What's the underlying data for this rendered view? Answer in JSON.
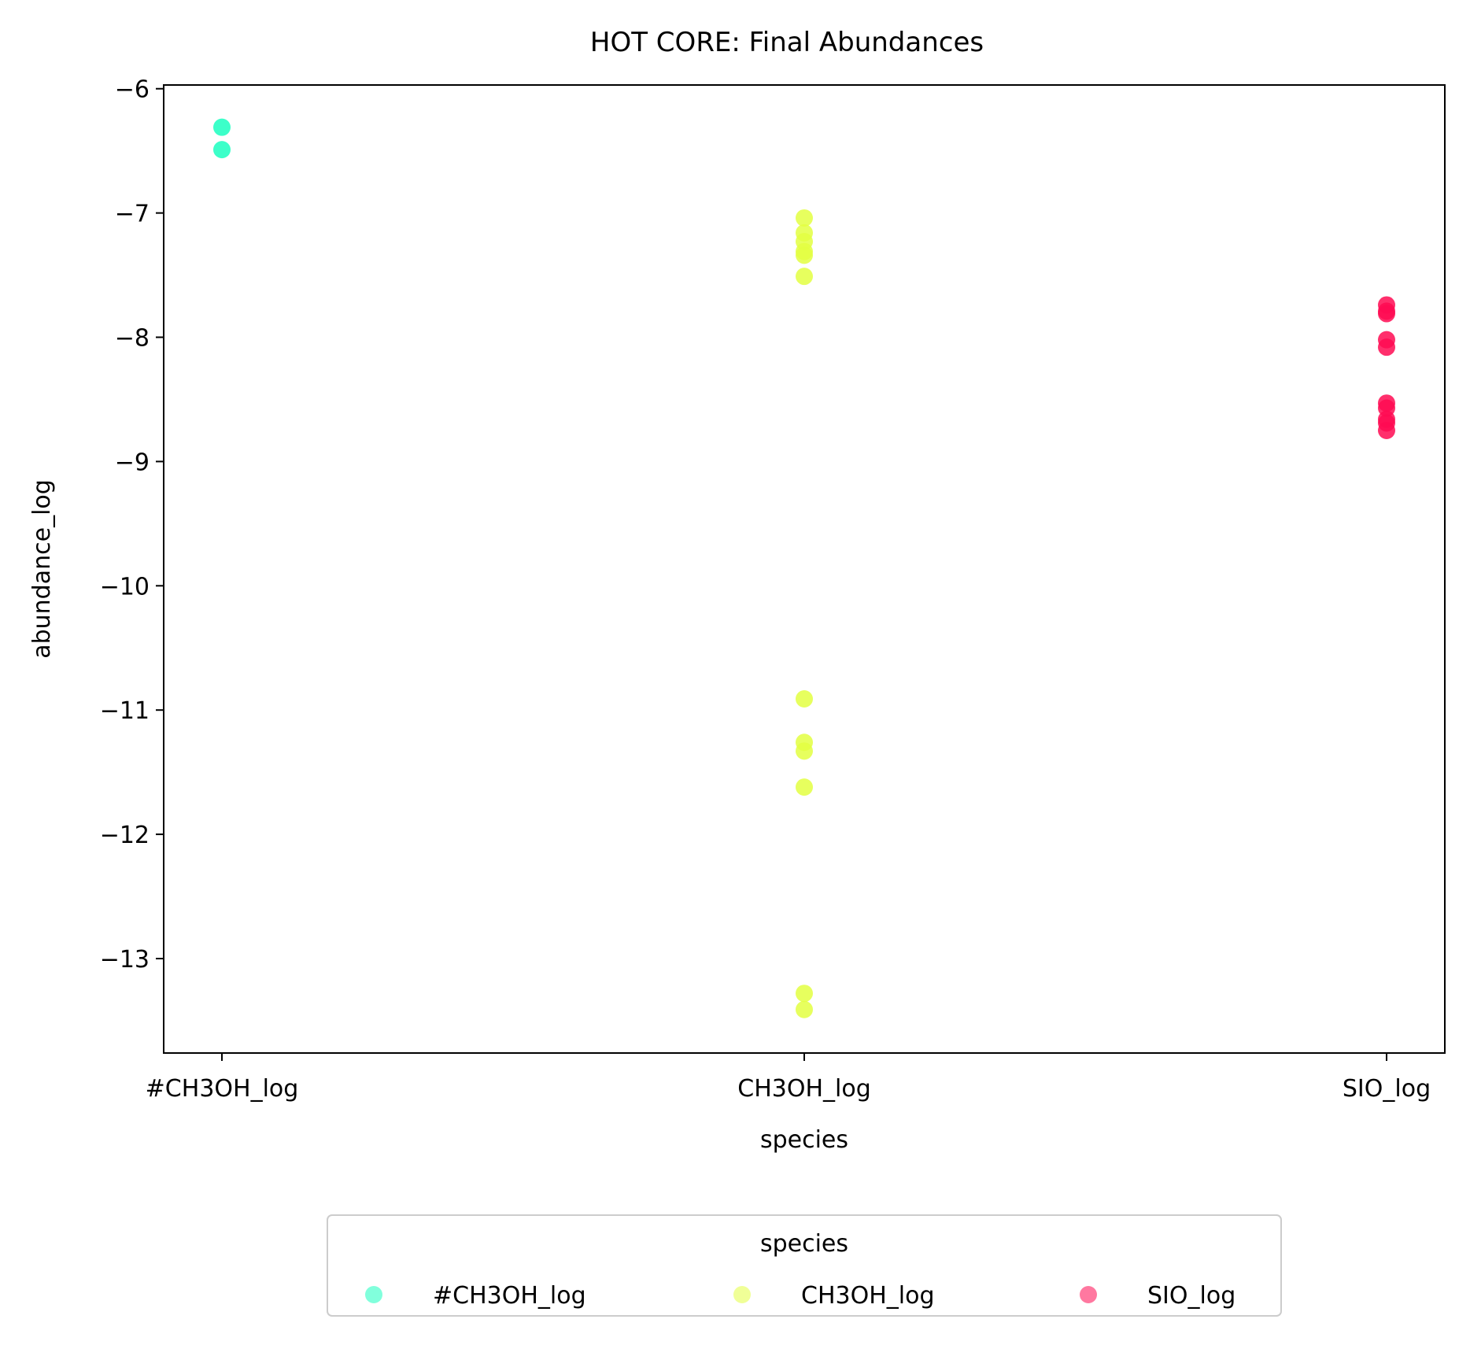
{
  "chart_data": {
    "type": "scatter",
    "title": "HOT CORE: Final Abundances",
    "xlabel": "species",
    "ylabel": "abundance_log",
    "categories": [
      "#CH3OH_log",
      "CH3OH_log",
      "SIO_log"
    ],
    "ylim": [
      -13.76,
      -5.97
    ],
    "yticks": [
      -6,
      -7,
      -8,
      -9,
      -10,
      -11,
      -12,
      -13
    ],
    "grid": false,
    "legend": {
      "title": "species",
      "placement": "bottom-center"
    },
    "series": [
      {
        "name": "#CH3OH_log",
        "color": "#1affc0",
        "values": [
          -6.31,
          -6.49
        ]
      },
      {
        "name": "CH3OH_log",
        "color": "#e3ff42",
        "values": [
          -7.04,
          -7.16,
          -7.23,
          -7.31,
          -7.34,
          -7.51,
          -10.91,
          -11.26,
          -11.33,
          -11.62,
          -13.28,
          -13.41
        ]
      },
      {
        "name": "SIO_log",
        "color": "#ff0a52",
        "values": [
          -7.74,
          -7.79,
          -7.81,
          -8.02,
          -8.08,
          -8.53,
          -8.57,
          -8.66,
          -8.69,
          -8.75
        ]
      }
    ]
  }
}
